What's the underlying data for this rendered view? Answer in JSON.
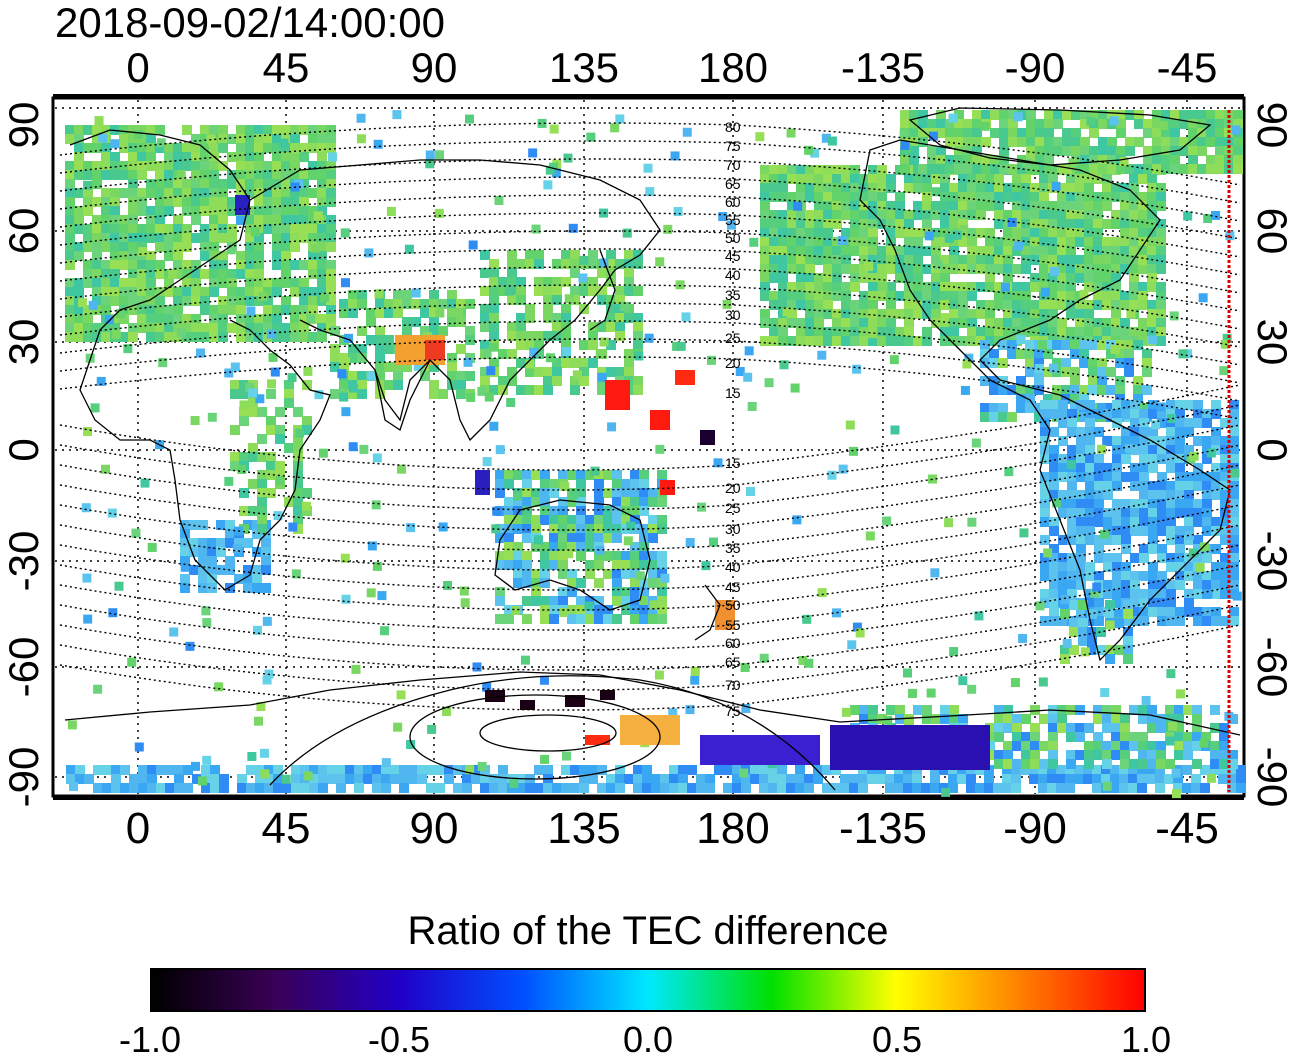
{
  "timestamp": "2018-09-02/14:00:00",
  "map": {
    "lon_ticks": [
      "0",
      "45",
      "90",
      "135",
      "180",
      "-135",
      "-90",
      "-45"
    ],
    "lat_ticks_left": [
      "90",
      "60",
      "30",
      "0",
      "-30",
      "-60",
      "-90"
    ],
    "lat_ticks_right": [
      "90",
      "60",
      "30",
      "0",
      "-30",
      "-60",
      "-90"
    ],
    "contour_labels_north": [
      "80",
      "75",
      "70",
      "65",
      "60",
      "55",
      "50",
      "45",
      "40",
      "35",
      "30",
      "25",
      "20",
      "15"
    ],
    "contour_labels_south": [
      "15",
      "20",
      "25",
      "30",
      "35",
      "40",
      "45",
      "50",
      "55",
      "60",
      "65",
      "70",
      "75"
    ],
    "grid": "dotted, every 45° longitude and 30° latitude",
    "colors": {
      "ocean_background": "#ffffff",
      "terminator_line": "#dd0000"
    }
  },
  "colorbar": {
    "title": "Ratio of the TEC difference",
    "ticks": [
      "-1.0",
      "-0.5",
      "0.0",
      "0.5",
      "1.0"
    ],
    "range": [
      -1.0,
      1.0
    ],
    "colormap": [
      "#000000",
      "#3a0057",
      "#2000c8",
      "#0050ff",
      "#00e8ff",
      "#00e000",
      "#ffff00",
      "#ff8000",
      "#ff0000"
    ]
  }
}
